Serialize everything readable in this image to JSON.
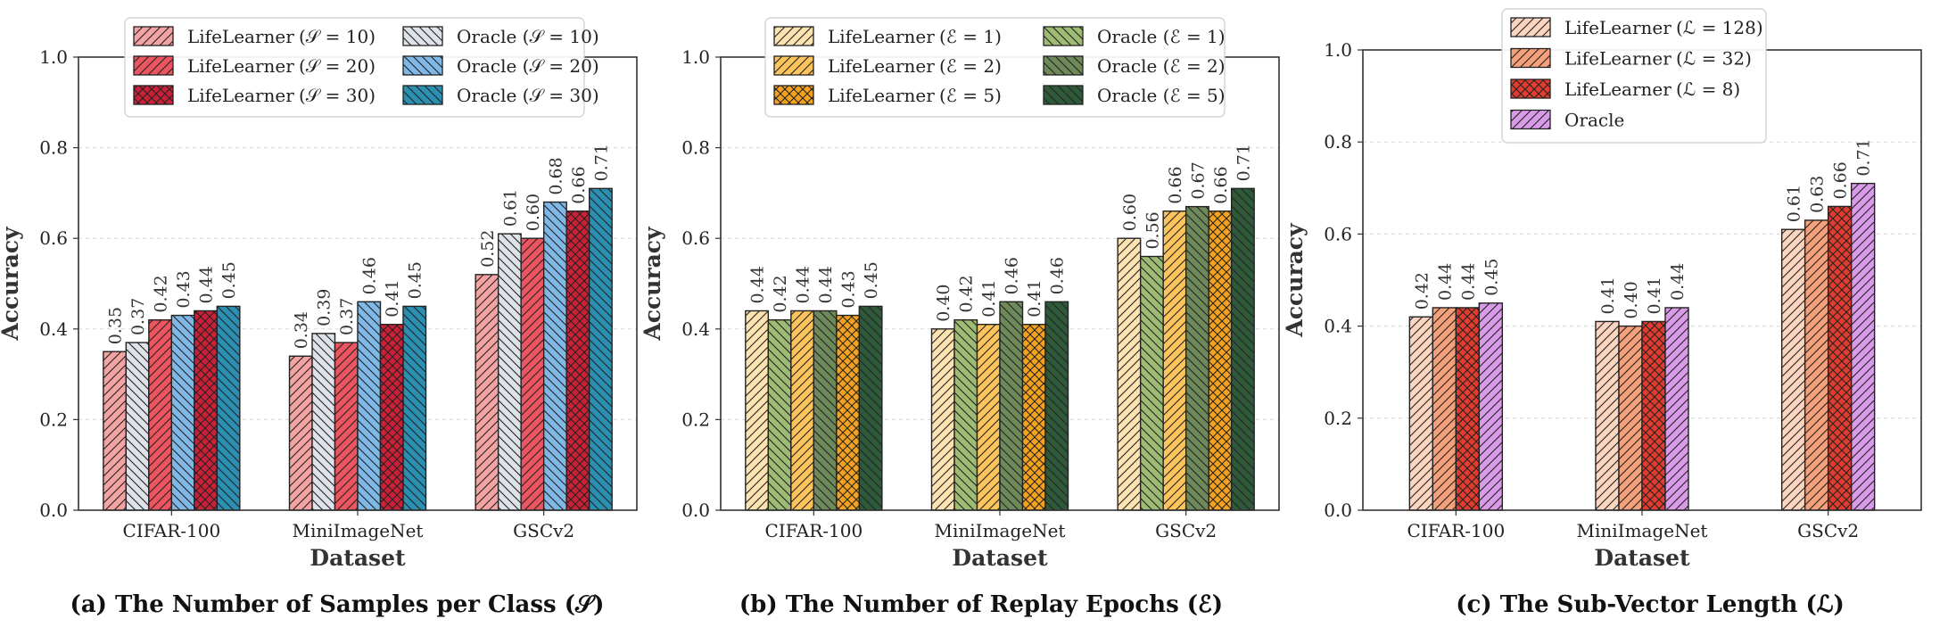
{
  "chart_data": [
    {
      "type": "bar",
      "title": "",
      "caption": "(a) The Number of Samples per Class (𝒮)",
      "xlabel": "Dataset",
      "ylabel": "Accuracy",
      "ylim": [
        0,
        1.0
      ],
      "yticks": [
        "0.0",
        "0.2",
        "0.4",
        "0.6",
        "0.8",
        "1.0"
      ],
      "grid": true,
      "legend_position": "top",
      "legend_columns": 2,
      "categories": [
        "CIFAR-100",
        "MiniImageNet",
        "GSCv2"
      ],
      "series": [
        {
          "name": "LifeLearner",
          "param": "(𝒮 = 10)",
          "values": [
            0.35,
            0.34,
            0.52
          ],
          "color": "#f4a3a3",
          "hatch": "diag"
        },
        {
          "name": "Oracle",
          "param": "(𝒮 = 10)",
          "values": [
            0.37,
            0.39,
            0.61
          ],
          "color": "#dde3e8",
          "hatch": "back"
        },
        {
          "name": "LifeLearner",
          "param": "(𝒮 = 20)",
          "values": [
            0.42,
            0.37,
            0.6
          ],
          "color": "#ec5560",
          "hatch": "diag"
        },
        {
          "name": "Oracle",
          "param": "(𝒮 = 20)",
          "values": [
            0.43,
            0.46,
            0.68
          ],
          "color": "#7fb7e6",
          "hatch": "back"
        },
        {
          "name": "LifeLearner",
          "param": "(𝒮 = 30)",
          "values": [
            0.44,
            0.41,
            0.66
          ],
          "color": "#cc2038",
          "hatch": "cross"
        },
        {
          "name": "Oracle",
          "param": "(𝒮 = 30)",
          "values": [
            0.45,
            0.45,
            0.71
          ],
          "color": "#2b8fb2",
          "hatch": "back"
        }
      ]
    },
    {
      "type": "bar",
      "title": "",
      "caption": "(b) The Number of Replay Epochs (ℰ)",
      "xlabel": "Dataset",
      "ylabel": "Accuracy",
      "ylim": [
        0,
        1.0
      ],
      "yticks": [
        "0.0",
        "0.2",
        "0.4",
        "0.6",
        "0.8",
        "1.0"
      ],
      "grid": true,
      "legend_position": "top",
      "legend_columns": 2,
      "categories": [
        "CIFAR-100",
        "MiniImageNet",
        "GSCv2"
      ],
      "series": [
        {
          "name": "LifeLearner",
          "param": "(ℰ = 1)",
          "values": [
            0.44,
            0.4,
            0.6
          ],
          "color": "#fde3b0",
          "hatch": "diag"
        },
        {
          "name": "Oracle",
          "param": "(ℰ = 1)",
          "values": [
            0.42,
            0.42,
            0.56
          ],
          "color": "#9dbb72",
          "hatch": "back"
        },
        {
          "name": "LifeLearner",
          "param": "(ℰ = 2)",
          "values": [
            0.44,
            0.41,
            0.66
          ],
          "color": "#fcc45a",
          "hatch": "diag"
        },
        {
          "name": "Oracle",
          "param": "(ℰ = 2)",
          "values": [
            0.44,
            0.46,
            0.67
          ],
          "color": "#6e8a5a",
          "hatch": "back"
        },
        {
          "name": "LifeLearner",
          "param": "(ℰ = 5)",
          "values": [
            0.43,
            0.41,
            0.66
          ],
          "color": "#f5a21f",
          "hatch": "cross"
        },
        {
          "name": "Oracle",
          "param": "(ℰ = 5)",
          "values": [
            0.45,
            0.46,
            0.71
          ],
          "color": "#2e5a3a",
          "hatch": "back"
        }
      ]
    },
    {
      "type": "bar",
      "title": "",
      "caption": "(c) The Sub-Vector Length (ℒ)",
      "xlabel": "Dataset",
      "ylabel": "Accuracy",
      "ylim": [
        0,
        1.0
      ],
      "yticks": [
        "0.0",
        "0.2",
        "0.4",
        "0.6",
        "0.8",
        "1.0"
      ],
      "grid": true,
      "legend_position": "top",
      "legend_columns": 1,
      "categories": [
        "CIFAR-100",
        "MiniImageNet",
        "GSCv2"
      ],
      "series": [
        {
          "name": "LifeLearner",
          "param": "(ℒ = 128)",
          "values": [
            0.42,
            0.41,
            0.61
          ],
          "color": "#fcd5c0",
          "hatch": "diag"
        },
        {
          "name": "LifeLearner",
          "param": "(ℒ = 32)",
          "values": [
            0.44,
            0.4,
            0.63
          ],
          "color": "#f4a07a",
          "hatch": "diag"
        },
        {
          "name": "LifeLearner",
          "param": "(ℒ = 8)",
          "values": [
            0.44,
            0.41,
            0.66
          ],
          "color": "#e23c30",
          "hatch": "cross"
        },
        {
          "name": "Oracle",
          "param": "",
          "values": [
            0.45,
            0.44,
            0.71
          ],
          "color": "#d99ae8",
          "hatch": "diag"
        }
      ]
    }
  ]
}
